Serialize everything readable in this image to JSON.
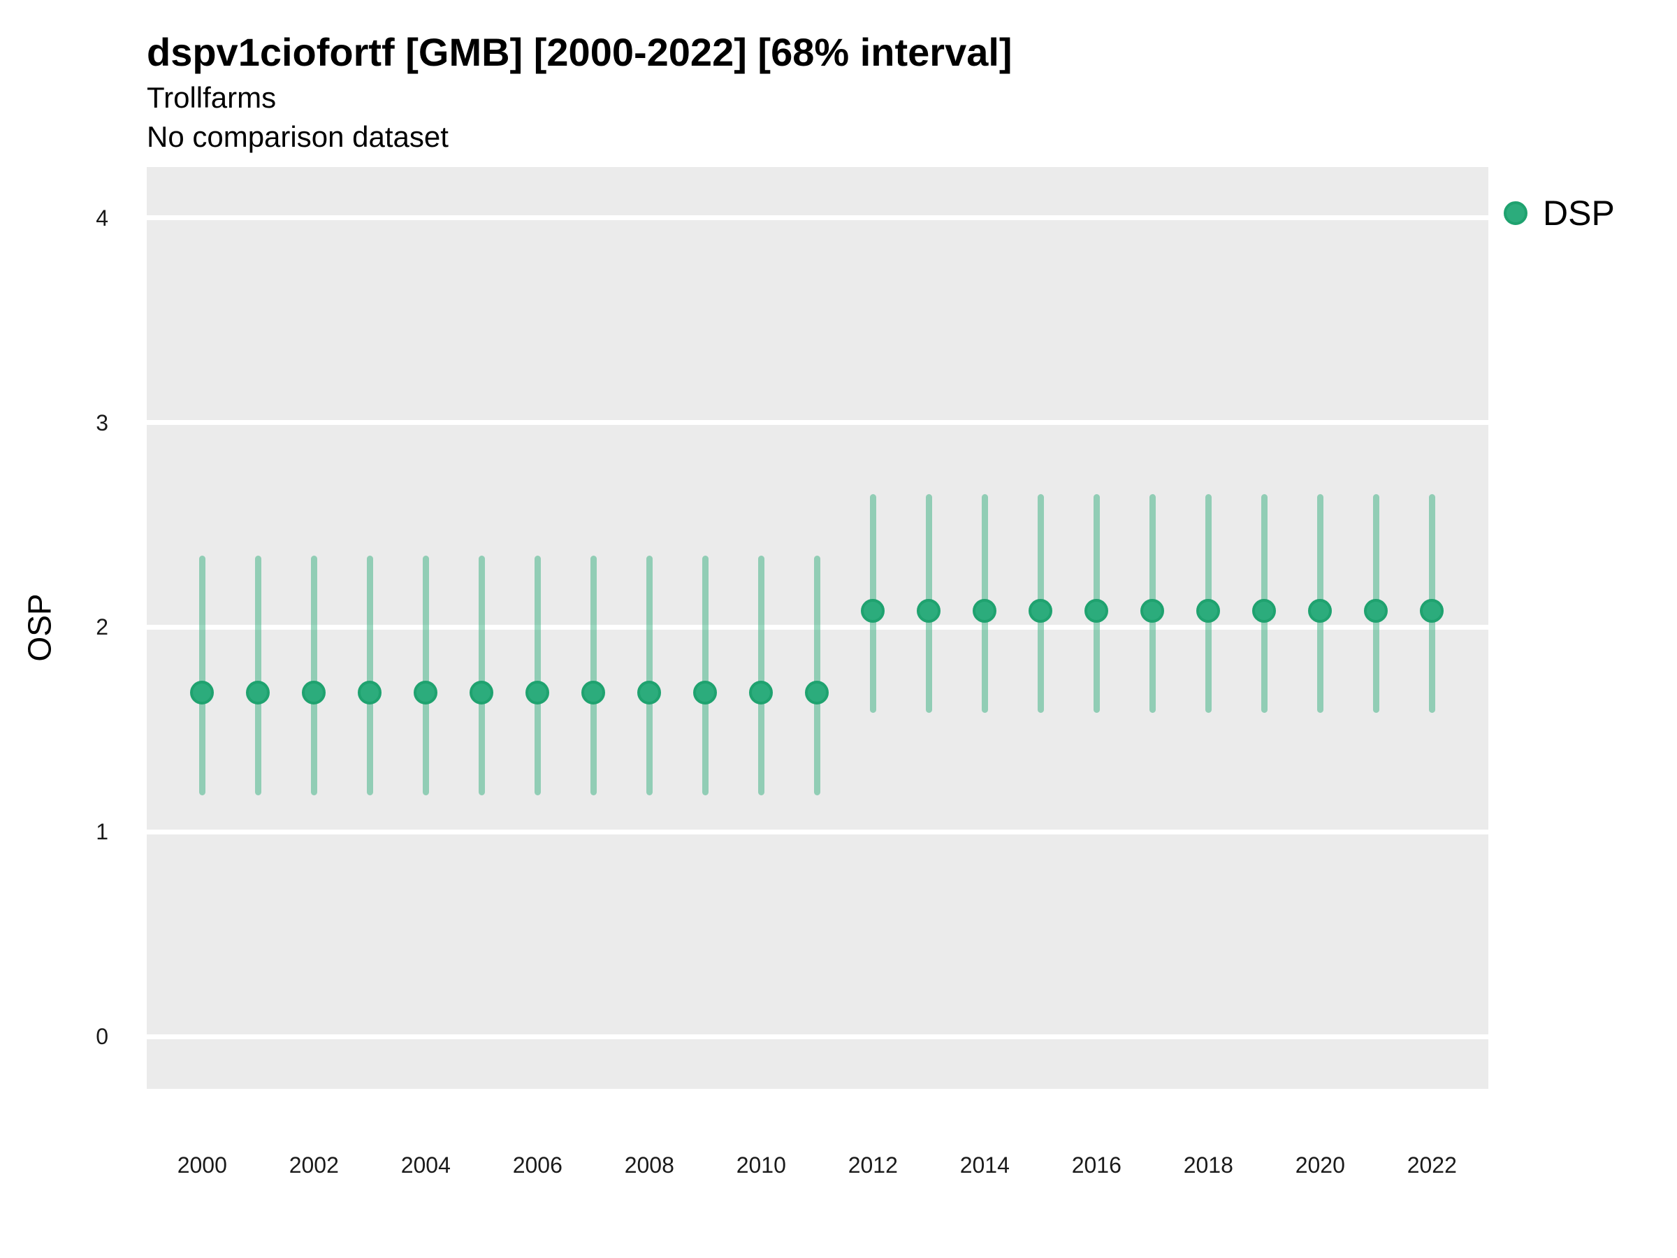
{
  "figure": {
    "title": "dspv1ciofortf [GMB] [2000-2022] [68% interval]",
    "subtitle": "Trollfarms",
    "comparison_note": "No comparison dataset",
    "y_axis_title": "OSP",
    "legend": {
      "position": "right",
      "items": [
        {
          "label": "DSP",
          "marker": "circle-icon",
          "color": "#2CAC7C"
        }
      ]
    }
  },
  "chart_data": {
    "type": "scatter",
    "subtype": "pointrange: point estimates with 68% uncertainty intervals, one per year",
    "title": "dspv1ciofortf [GMB] [2000-2022] [68% interval]",
    "subtitle": "Trollfarms",
    "note": "No comparison dataset",
    "xlabel": "",
    "ylabel": "OSP",
    "interval_level": "68%",
    "x": [
      2000,
      2001,
      2002,
      2003,
      2004,
      2005,
      2006,
      2007,
      2008,
      2009,
      2010,
      2011,
      2012,
      2013,
      2014,
      2015,
      2016,
      2017,
      2018,
      2019,
      2020,
      2021,
      2022
    ],
    "series": [
      {
        "name": "DSP",
        "estimate": [
          1.68,
          1.68,
          1.68,
          1.68,
          1.68,
          1.68,
          1.68,
          1.68,
          1.68,
          1.68,
          1.68,
          1.68,
          2.08,
          2.08,
          2.08,
          2.08,
          2.08,
          2.08,
          2.08,
          2.08,
          2.08,
          2.08,
          2.08
        ],
        "lower": [
          1.18,
          1.18,
          1.18,
          1.18,
          1.18,
          1.18,
          1.18,
          1.18,
          1.18,
          1.18,
          1.18,
          1.18,
          1.58,
          1.58,
          1.58,
          1.58,
          1.58,
          1.58,
          1.58,
          1.58,
          1.58,
          1.58,
          1.58
        ],
        "upper": [
          2.35,
          2.35,
          2.35,
          2.35,
          2.35,
          2.35,
          2.35,
          2.35,
          2.35,
          2.35,
          2.35,
          2.35,
          2.65,
          2.65,
          2.65,
          2.65,
          2.65,
          2.65,
          2.65,
          2.65,
          2.65,
          2.65,
          2.65
        ]
      }
    ],
    "xticks": [
      2000,
      2002,
      2004,
      2006,
      2008,
      2010,
      2012,
      2014,
      2016,
      2018,
      2020,
      2022
    ],
    "yticks": [
      0,
      1,
      2,
      3,
      4
    ],
    "ylim": [
      -0.26,
      4.25
    ],
    "grid": "horizontal-major-only, white lines on grey panel",
    "legend_position": "right",
    "panel_bg": "#EBEBEB"
  },
  "colors": {
    "point_fill": "#2CAC7C",
    "point_stroke": "#1FA26F",
    "interval_line": "rgba(45,172,122,0.47)",
    "panel_bg": "#EBEBEB",
    "gridline": "#FFFFFF",
    "title_text": "#000000",
    "tick_text": "#1A1A1A"
  }
}
